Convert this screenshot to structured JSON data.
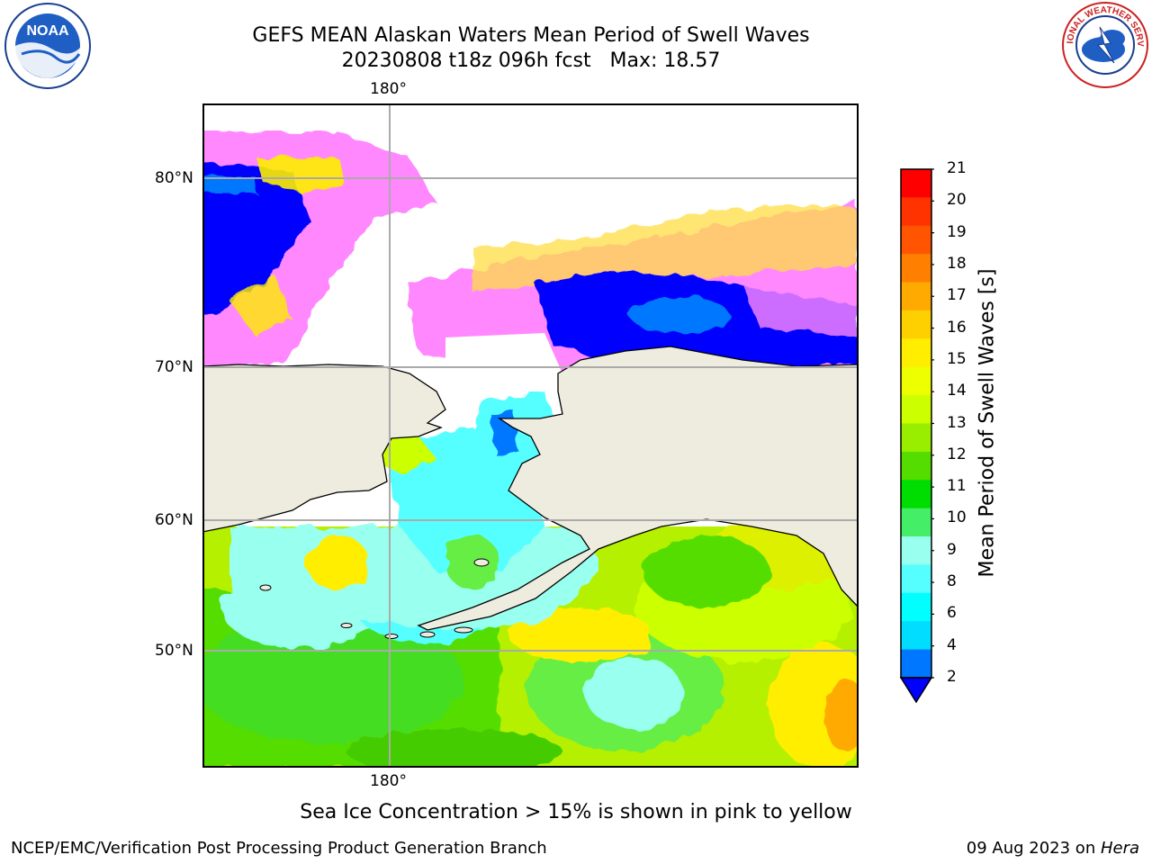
{
  "title": {
    "line1": "GEFS MEAN Alaskan Waters Mean Period of Swell Waves",
    "line2": "20230808 t18z 096h fcst   Max: 18.57"
  },
  "logos": {
    "left": "noaa-logo",
    "right": "national-weather-service-logo",
    "left_text": "NOAA",
    "right_text": "NATIONAL WEATHER SERVICE"
  },
  "map": {
    "longitude_labels": [
      "180°",
      "180°"
    ],
    "latitude_labels": [
      "80°N",
      "70°N",
      "60°N",
      "50°N"
    ],
    "land_color": "#eeecdf",
    "ice_note": "Sea Ice Concentration > 15% is shown in pink to yellow"
  },
  "colorbar": {
    "label": "Mean Period of Swell Waves [s]",
    "ticks": [
      "21",
      "20",
      "19",
      "18",
      "17",
      "16",
      "15",
      "14",
      "13",
      "12",
      "11",
      "10",
      "9",
      "8",
      "6",
      "4",
      "2"
    ],
    "colors": [
      "#ff0000",
      "#ff3300",
      "#ff5500",
      "#ff8000",
      "#ffaa00",
      "#ffd000",
      "#ffee00",
      "#eeff00",
      "#ccff00",
      "#99ee00",
      "#55dd00",
      "#00dd00",
      "#44ee66",
      "#99ffee",
      "#55ffff",
      "#00ffff",
      "#00ddff",
      "#0077ff"
    ],
    "extend_color": "#0000ff"
  },
  "footer": {
    "left": "NCEP/EMC/Verification Post Processing Product Generation Branch",
    "right_date": "09 Aug 2023 on ",
    "right_host": "Hera"
  }
}
